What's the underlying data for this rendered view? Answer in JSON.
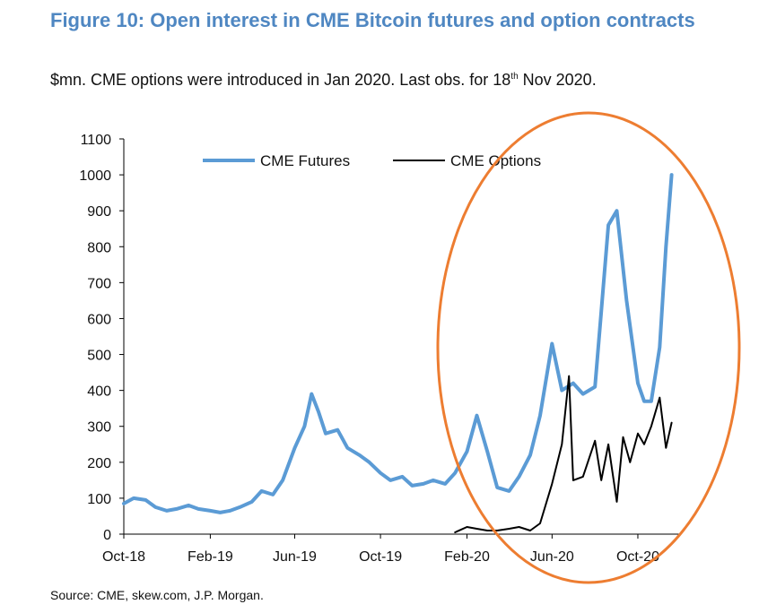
{
  "header": {
    "title": "Figure 10: Open interest in CME Bitcoin futures and option contracts",
    "subtitle_main": "$mn. CME options were introduced in Jan 2020. Last obs. for 18",
    "subtitle_sup": "th",
    "subtitle_end": " Nov 2020."
  },
  "footer": {
    "source": "Source: CME, skew.com, J.P. Morgan."
  },
  "colors": {
    "futures": "#5b9bd5",
    "options": "#000000",
    "highlight_ellipse": "#ed7d31",
    "axis": "#000000"
  },
  "chart_data": {
    "type": "line",
    "title": "Figure 10: Open interest in CME Bitcoin futures and option contracts",
    "subtitle": "$mn. CME options were introduced in Jan 2020. Last obs. for 18th Nov 2020.",
    "ylim": [
      0,
      1100
    ],
    "yticks": [
      "0",
      "100",
      "200",
      "300",
      "400",
      "500",
      "600",
      "700",
      "800",
      "900",
      "1000",
      "1100"
    ],
    "xlim": [
      "2018-10-01",
      "2020-11-30"
    ],
    "xticks": [
      {
        "date": "2018-10-01",
        "label": "Oct-18"
      },
      {
        "date": "2019-02-01",
        "label": "Feb-19"
      },
      {
        "date": "2019-06-01",
        "label": "Jun-19"
      },
      {
        "date": "2019-10-01",
        "label": "Oct-19"
      },
      {
        "date": "2020-02-01",
        "label": "Feb-20"
      },
      {
        "date": "2020-06-01",
        "label": "Jun-20"
      },
      {
        "date": "2020-10-01",
        "label": "Oct-20"
      }
    ],
    "legend_position": "top-center",
    "grid": false,
    "annotation": "orange ellipse highlighting Jan 2020 – Nov 2020",
    "series": [
      {
        "name": "CME Futures",
        "color": "#5b9bd5",
        "x": [
          "2018-10-01",
          "2018-10-15",
          "2018-11-01",
          "2018-11-15",
          "2018-12-01",
          "2018-12-15",
          "2019-01-01",
          "2019-01-15",
          "2019-02-01",
          "2019-02-15",
          "2019-03-01",
          "2019-03-15",
          "2019-04-01",
          "2019-04-15",
          "2019-05-01",
          "2019-05-15",
          "2019-06-01",
          "2019-06-15",
          "2019-06-25",
          "2019-07-05",
          "2019-07-15",
          "2019-08-01",
          "2019-08-15",
          "2019-09-01",
          "2019-09-15",
          "2019-10-01",
          "2019-10-15",
          "2019-11-01",
          "2019-11-15",
          "2019-12-01",
          "2019-12-15",
          "2020-01-01",
          "2020-01-15",
          "2020-02-01",
          "2020-02-15",
          "2020-03-01",
          "2020-03-15",
          "2020-04-01",
          "2020-04-15",
          "2020-05-01",
          "2020-05-15",
          "2020-06-01",
          "2020-06-15",
          "2020-07-01",
          "2020-07-15",
          "2020-08-01",
          "2020-08-10",
          "2020-08-20",
          "2020-09-01",
          "2020-09-15",
          "2020-10-01",
          "2020-10-10",
          "2020-10-20",
          "2020-11-01",
          "2020-11-10",
          "2020-11-18"
        ],
        "y": [
          85,
          100,
          95,
          75,
          65,
          70,
          80,
          70,
          65,
          60,
          65,
          75,
          90,
          120,
          110,
          150,
          240,
          300,
          390,
          340,
          280,
          290,
          240,
          220,
          200,
          170,
          150,
          160,
          135,
          140,
          150,
          140,
          170,
          230,
          330,
          230,
          130,
          120,
          160,
          220,
          330,
          530,
          400,
          420,
          390,
          410,
          620,
          860,
          900,
          650,
          420,
          370,
          370,
          520,
          800,
          1000
        ]
      },
      {
        "name": "CME Options",
        "color": "#000000",
        "x": [
          "2020-01-15",
          "2020-02-01",
          "2020-02-15",
          "2020-03-01",
          "2020-03-15",
          "2020-04-01",
          "2020-04-15",
          "2020-05-01",
          "2020-05-15",
          "2020-06-01",
          "2020-06-15",
          "2020-06-25",
          "2020-07-01",
          "2020-07-15",
          "2020-08-01",
          "2020-08-10",
          "2020-08-20",
          "2020-09-01",
          "2020-09-10",
          "2020-09-20",
          "2020-10-01",
          "2020-10-10",
          "2020-10-20",
          "2020-11-01",
          "2020-11-10",
          "2020-11-18"
        ],
        "y": [
          5,
          20,
          15,
          10,
          10,
          15,
          20,
          10,
          30,
          140,
          250,
          440,
          150,
          160,
          260,
          150,
          250,
          90,
          270,
          200,
          280,
          250,
          300,
          380,
          240,
          310
        ]
      }
    ]
  }
}
